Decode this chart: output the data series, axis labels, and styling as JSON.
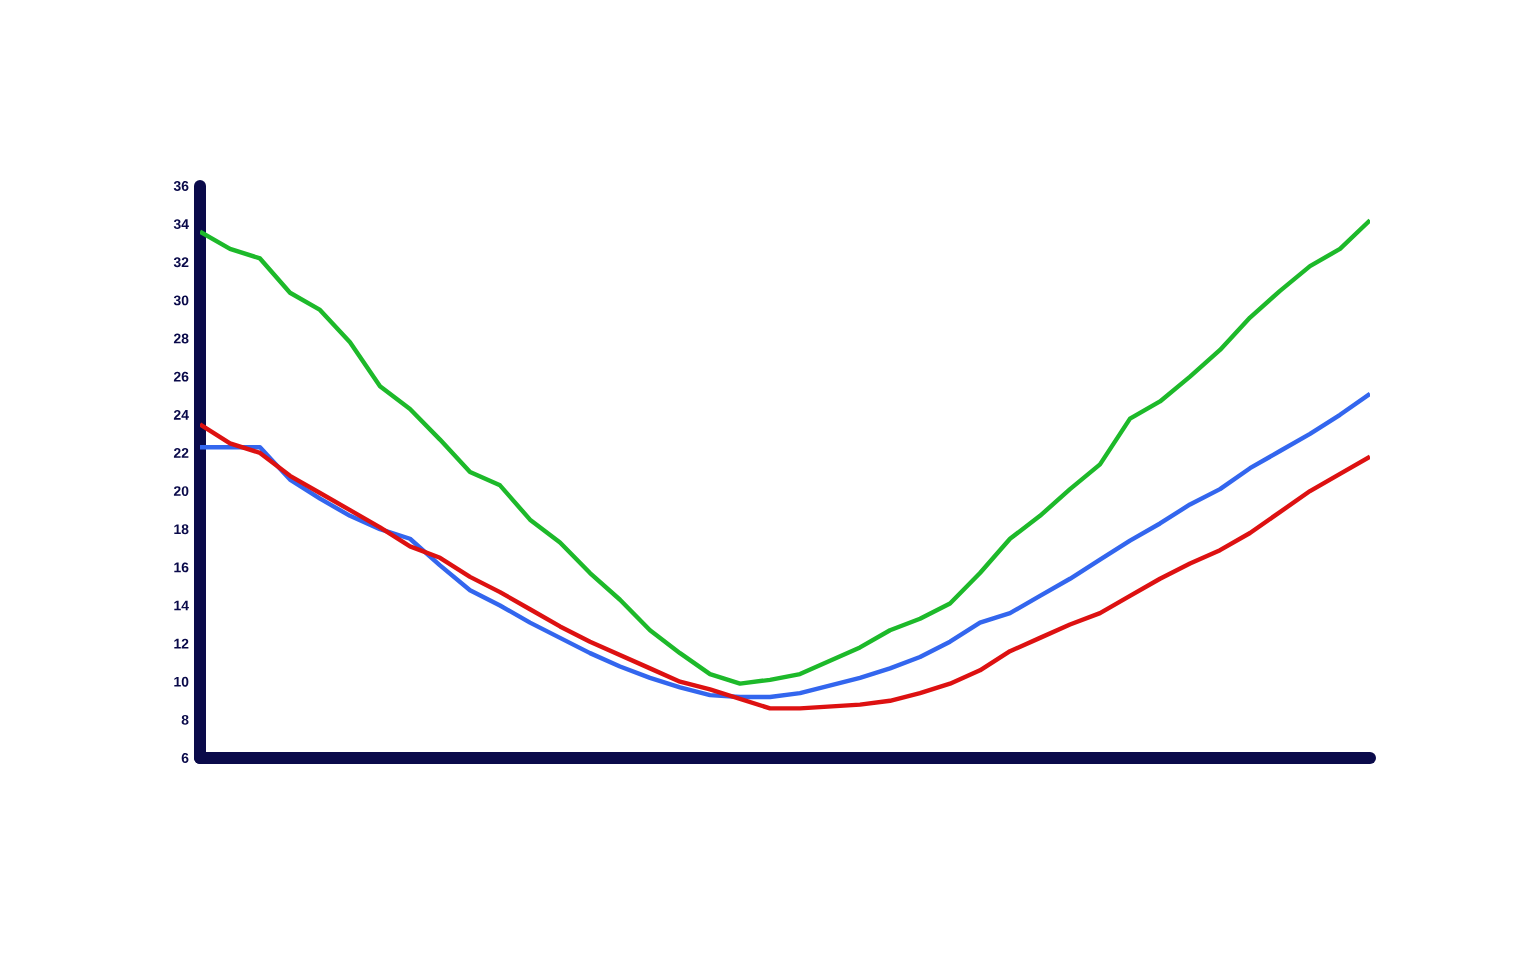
{
  "chart_data": {
    "type": "line",
    "categories": [
      null,
      null,
      null,
      null,
      null,
      null,
      null,
      null,
      null,
      null,
      null,
      null,
      null,
      null,
      null,
      null,
      null,
      null,
      null,
      null,
      null,
      null,
      null,
      null,
      null,
      null,
      null,
      null,
      null,
      null,
      null,
      null,
      null,
      null,
      null,
      null,
      null,
      null,
      null,
      null
    ],
    "series": [
      {
        "color": "#1db92a",
        "values": [
          33.6,
          32.7,
          32.2,
          30.4,
          29.5,
          27.8,
          25.5,
          24.3,
          22.7,
          21.0,
          20.3,
          18.5,
          17.3,
          15.7,
          14.3,
          12.7,
          11.5,
          10.4,
          9.9,
          10.1,
          10.4,
          11.1,
          11.8,
          12.7,
          13.3,
          14.1,
          15.7,
          17.5,
          18.7,
          20.1,
          21.4,
          23.8,
          24.7,
          26.0,
          27.4,
          29.1,
          30.5,
          31.8,
          32.7,
          34.2
        ]
      },
      {
        "color": "#3366ee",
        "values": [
          22.3,
          22.3,
          22.3,
          20.6,
          19.6,
          18.7,
          18.0,
          17.5,
          16.1,
          14.8,
          14.0,
          13.1,
          12.3,
          11.5,
          10.8,
          10.2,
          9.7,
          9.3,
          9.2,
          9.2,
          9.4,
          9.8,
          10.2,
          10.7,
          11.3,
          12.1,
          13.1,
          13.6,
          14.5,
          15.4,
          16.4,
          17.4,
          18.3,
          19.3,
          20.1,
          21.2,
          22.1,
          23.0,
          24.0,
          25.1
        ]
      },
      {
        "color": "#dd1111",
        "values": [
          23.5,
          22.5,
          22.0,
          20.8,
          19.9,
          19.0,
          18.1,
          17.1,
          16.5,
          15.5,
          14.7,
          13.8,
          12.9,
          12.1,
          11.4,
          10.7,
          10.0,
          9.6,
          9.1,
          8.6,
          8.6,
          8.7,
          8.8,
          9.0,
          9.4,
          9.9,
          10.6,
          11.6,
          12.3,
          13.0,
          13.6,
          14.5,
          15.4,
          16.2,
          16.9,
          17.8,
          18.9,
          20.0,
          20.9,
          21.8
        ]
      }
    ],
    "ylim": [
      6,
      36
    ],
    "yticks": [
      6,
      8,
      10,
      12,
      14,
      16,
      18,
      20,
      22,
      24,
      26,
      28,
      30,
      32,
      34,
      36
    ],
    "tick_labels": "y",
    "grid": false,
    "marker": "none",
    "line_style": "solid"
  }
}
